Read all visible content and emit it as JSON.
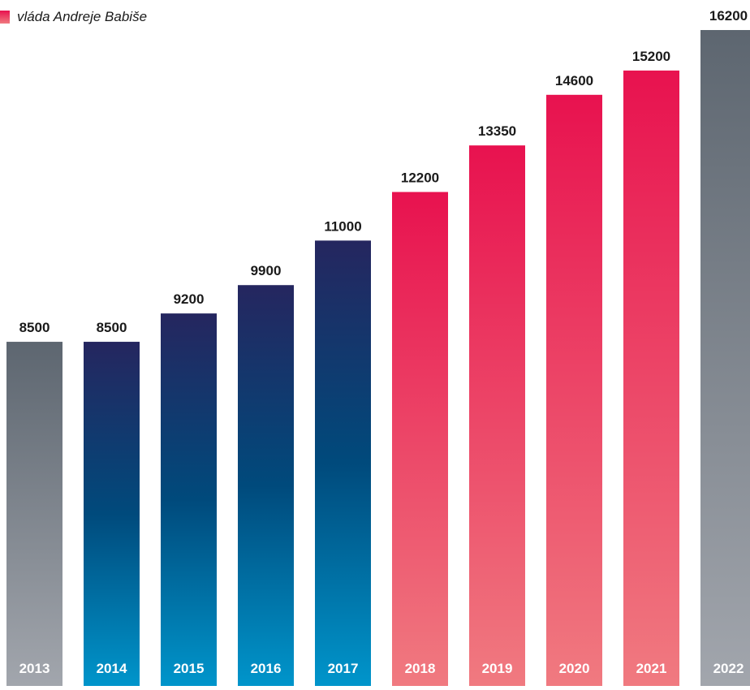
{
  "legend": {
    "label": "vláda Andreje Babiše",
    "color": "#e8124f"
  },
  "colors": {
    "gray": [
      "#5d6670",
      "#a2a6ad"
    ],
    "blue": [
      "#25265f",
      "#004a7c",
      "#0095cb"
    ],
    "red": [
      "#e8124f",
      "#f07a80"
    ]
  },
  "chart_data": {
    "type": "bar",
    "title": "",
    "xlabel": "",
    "ylabel": "",
    "categories": [
      "2013",
      "2014",
      "2015",
      "2016",
      "2017",
      "2018",
      "2019",
      "2020",
      "2021",
      "2022"
    ],
    "values": [
      8500,
      8500,
      9200,
      9900,
      11000,
      12200,
      13350,
      14600,
      15200,
      16200
    ],
    "bar_groups": [
      "gray",
      "blue",
      "blue",
      "blue",
      "blue",
      "red",
      "red",
      "red",
      "red",
      "gray"
    ],
    "legend": [
      {
        "name": "vláda Andreje Babiše",
        "group": "red"
      }
    ],
    "ylim": [
      0,
      16200
    ],
    "grid": false
  }
}
